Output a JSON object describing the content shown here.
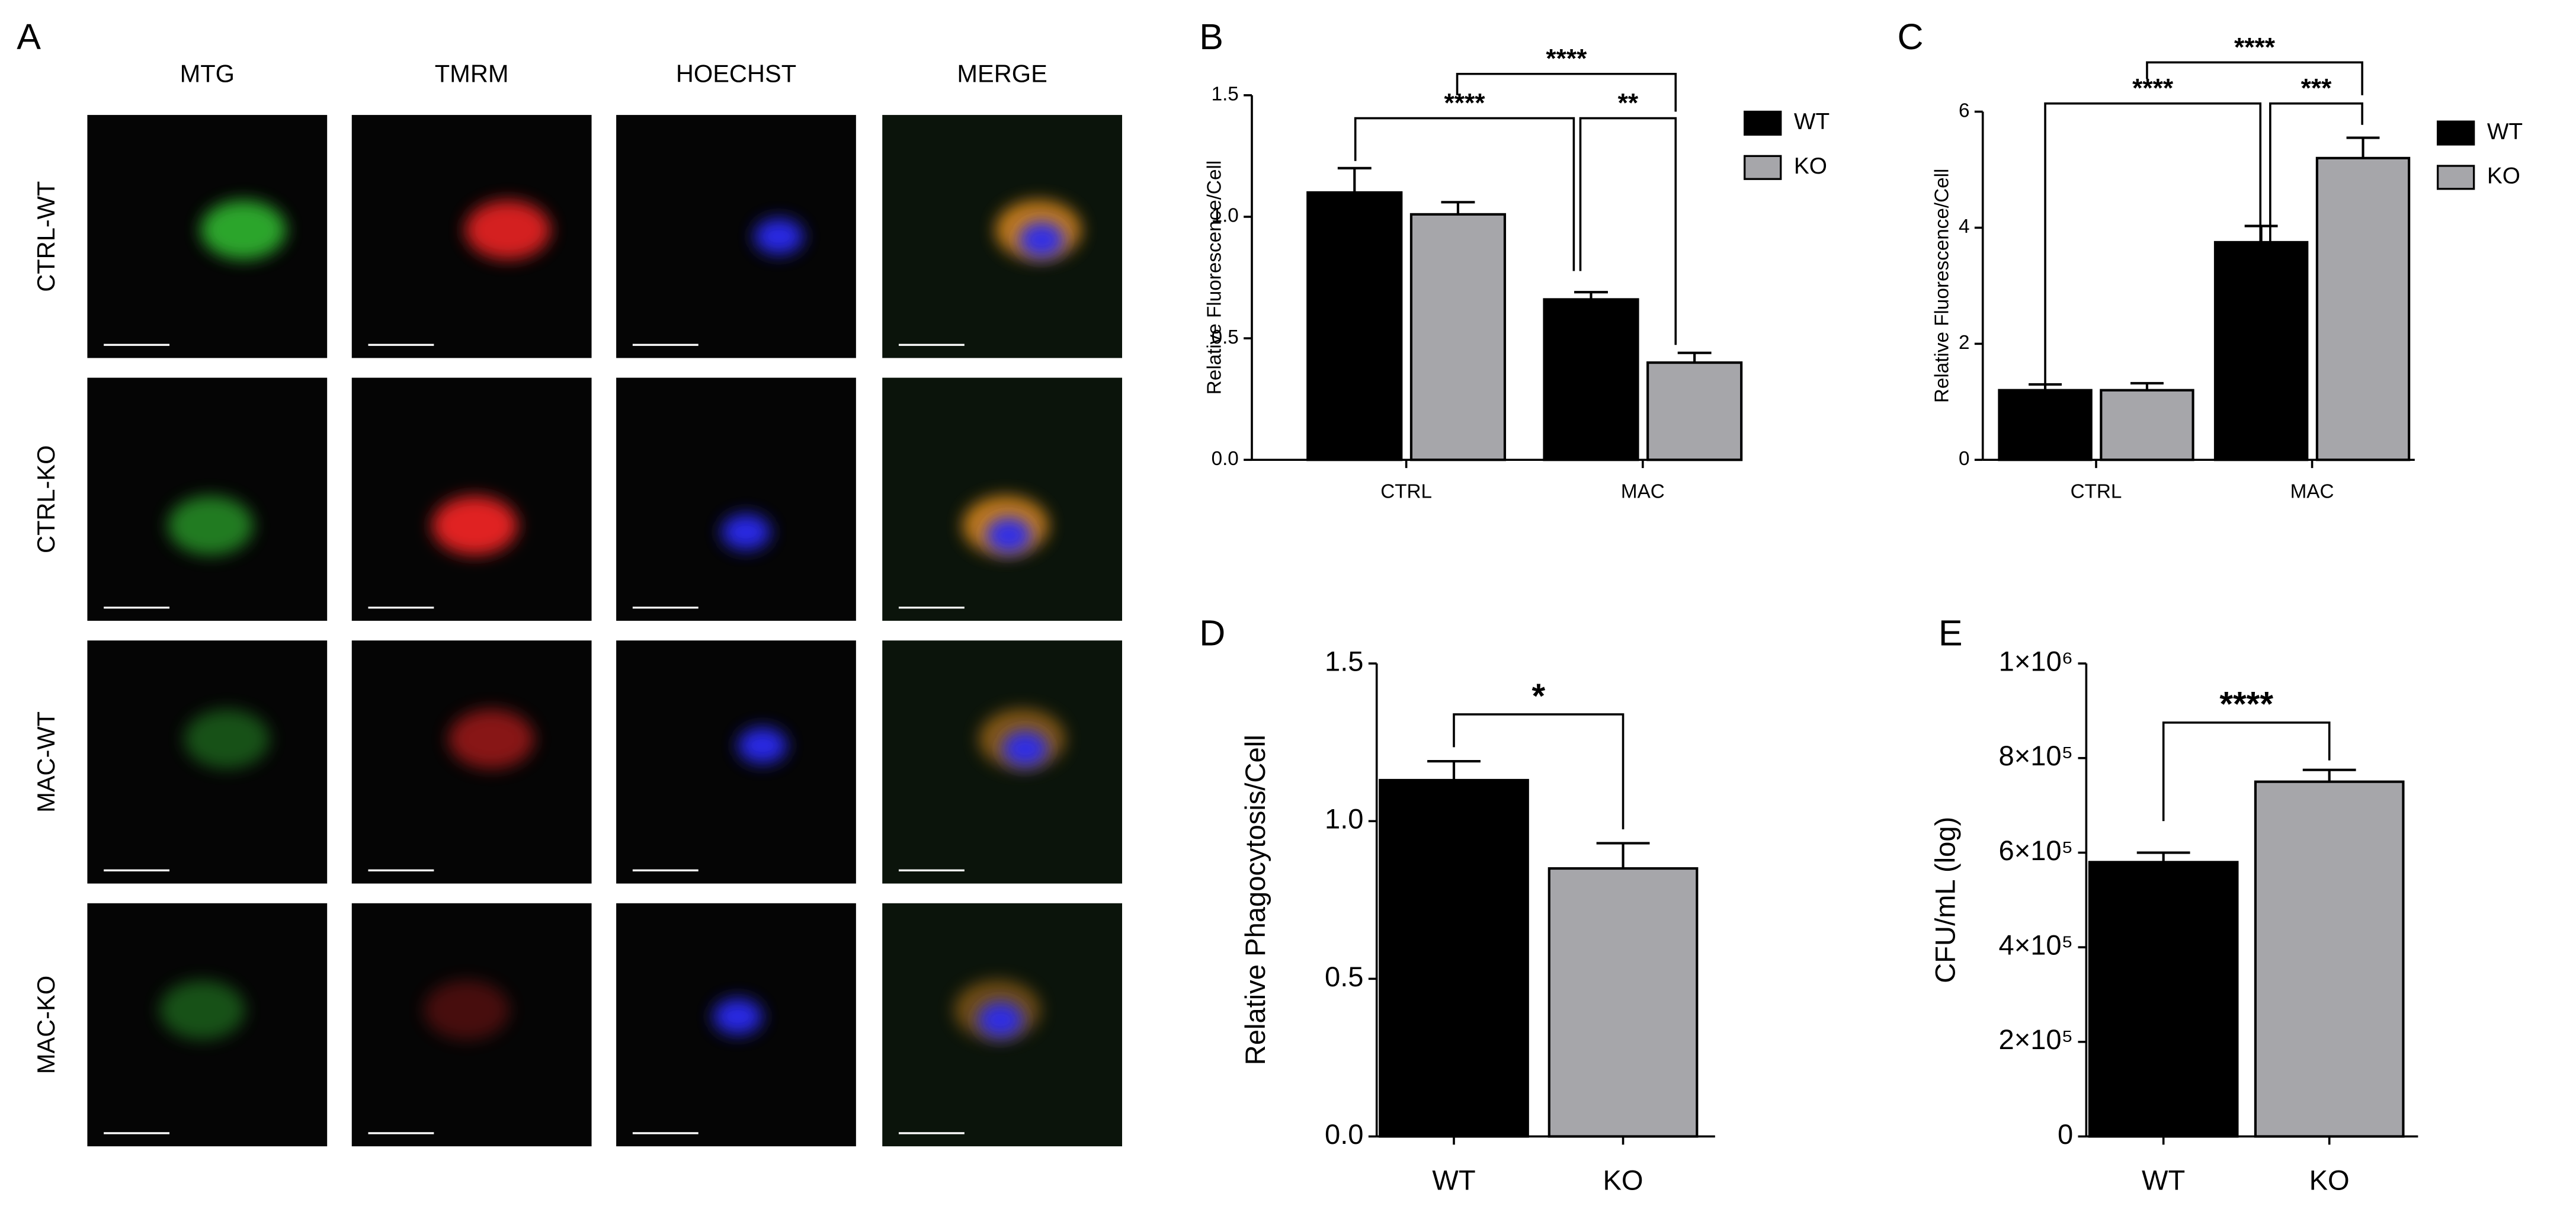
{
  "figure_a": {
    "label": "A",
    "columns": [
      "MTG",
      "TMRM",
      "HOECHST",
      "MERGE"
    ],
    "rows": [
      "CTRL-WT",
      "CTRL-KO",
      "MAC-WT",
      "MAC-KO"
    ]
  },
  "chart_data": [
    {
      "panel": "B",
      "type": "bar",
      "y_label": "Relative Fluorescence/Cell",
      "categories": [
        "CTRL",
        "MAC"
      ],
      "series": [
        {
          "name": "WT",
          "color": "#000000",
          "values": [
            1.1,
            0.66
          ],
          "errors": [
            0.1,
            0.03
          ]
        },
        {
          "name": "KO",
          "color": "#a6a6aa",
          "values": [
            1.01,
            0.4
          ],
          "errors": [
            0.05,
            0.04
          ]
        }
      ],
      "ylim": [
        0,
        1.5
      ],
      "yticks": [
        {
          "value": 0,
          "label": "0.0"
        },
        0.5,
        {
          "value": 1,
          "label": "1.0"
        },
        1.5
      ],
      "legend": "right",
      "annotations": [
        "****",
        "****",
        "**"
      ]
    },
    {
      "panel": "C",
      "type": "bar",
      "y_label": "Relative Fluorescence/Cell",
      "categories": [
        "CTRL",
        "MAC"
      ],
      "series": [
        {
          "name": "WT",
          "color": "#000000",
          "values": [
            1.2,
            3.75
          ],
          "errors": [
            0.1,
            0.28
          ]
        },
        {
          "name": "KO",
          "color": "#a6a6aa",
          "values": [
            1.2,
            5.2
          ],
          "errors": [
            0.12,
            0.35
          ]
        }
      ],
      "ylim": [
        0,
        6
      ],
      "yticks": [
        0,
        2,
        4,
        6
      ],
      "legend": "right",
      "annotations": [
        "****",
        "****",
        "***"
      ]
    },
    {
      "panel": "D",
      "type": "bar",
      "y_label": "Relative Phagocytosis/Cell",
      "categories": [
        "WT",
        "KO"
      ],
      "values": [
        1.13,
        0.85
      ],
      "errors": [
        0.06,
        0.08
      ],
      "colors": [
        "#000000",
        "#a6a6aa"
      ],
      "ylim": [
        0,
        1.5
      ],
      "yticks": [
        {
          "value": 0,
          "label": "0.0"
        },
        0.5,
        {
          "value": 1,
          "label": "1.0"
        },
        1.5
      ],
      "annotations": [
        "*"
      ]
    },
    {
      "panel": "E",
      "type": "bar",
      "y_label": "CFU/mL (log)",
      "categories": [
        "WT",
        "KO"
      ],
      "values": [
        580000,
        750000
      ],
      "errors": [
        20000,
        25000
      ],
      "colors": [
        "#000000",
        "#a6a6aa"
      ],
      "ylim": [
        0,
        1000000
      ],
      "yticks": [
        0,
        {
          "value": 200000,
          "label": "2×10⁵"
        },
        {
          "value": 400000,
          "label": "4×10⁵"
        },
        {
          "value": 600000,
          "label": "6×10⁵"
        },
        {
          "value": 800000,
          "label": "8×10⁵"
        },
        {
          "value": 1000000,
          "label": "1×10⁶"
        }
      ],
      "annotations": [
        "****"
      ]
    }
  ]
}
